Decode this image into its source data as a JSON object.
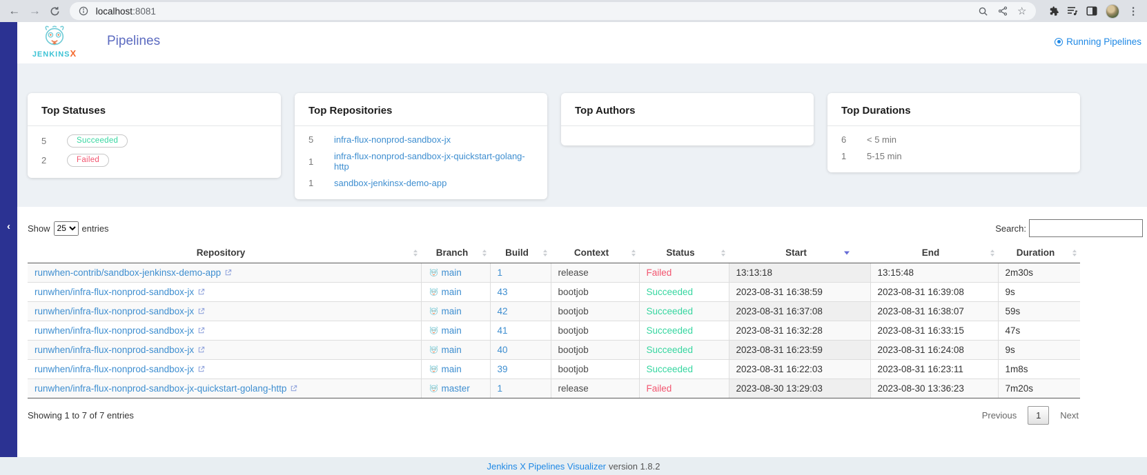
{
  "browser": {
    "url_host": "localhost",
    "url_port": ":8081",
    "icons": [
      "back",
      "forward",
      "reload",
      "page-info",
      "zoom",
      "share",
      "bookmark-star",
      "extensions",
      "reading-list",
      "side-panel",
      "profile-avatar",
      "browser-menu"
    ]
  },
  "header": {
    "logo_word": "JENKINS",
    "logo_x": "X",
    "title": "Pipelines",
    "running_label": "Running Pipelines"
  },
  "cards": [
    {
      "title": "Top Statuses",
      "type": "badges",
      "items": [
        {
          "count": "5",
          "label": "Succeeded",
          "color": "#36d6a0"
        },
        {
          "count": "2",
          "label": "Failed",
          "color": "#f2556f"
        }
      ]
    },
    {
      "title": "Top Repositories",
      "type": "links",
      "items": [
        {
          "count": "5",
          "label": "infra-flux-nonprod-sandbox-jx"
        },
        {
          "count": "1",
          "label": "infra-flux-nonprod-sandbox-jx-quickstart-golang-http"
        },
        {
          "count": "1",
          "label": "sandbox-jenkinsx-demo-app"
        }
      ]
    },
    {
      "title": "Top Authors",
      "type": "text",
      "items": []
    },
    {
      "title": "Top Durations",
      "type": "text",
      "items": [
        {
          "count": "6",
          "label": "< 5 min"
        },
        {
          "count": "1",
          "label": "5-15 min"
        }
      ]
    }
  ],
  "table": {
    "show_label": "Show",
    "page_size": "25",
    "entries_label": "entries",
    "search_label": "Search:",
    "search_value": "",
    "columns": [
      "Repository",
      "Branch",
      "Build",
      "Context",
      "Status",
      "Start",
      "End",
      "Duration"
    ],
    "sorted_column": "Start",
    "sort_direction": "desc",
    "rows": [
      {
        "repository": "runwhen-contrib/sandbox-jenkinsx-demo-app",
        "branch": "main",
        "build": "1",
        "context": "release",
        "status": "Failed",
        "start": "13:13:18",
        "end": "13:15:48",
        "duration": "2m30s"
      },
      {
        "repository": "runwhen/infra-flux-nonprod-sandbox-jx",
        "branch": "main",
        "build": "43",
        "context": "bootjob",
        "status": "Succeeded",
        "start": "2023-08-31 16:38:59",
        "end": "2023-08-31 16:39:08",
        "duration": "9s"
      },
      {
        "repository": "runwhen/infra-flux-nonprod-sandbox-jx",
        "branch": "main",
        "build": "42",
        "context": "bootjob",
        "status": "Succeeded",
        "start": "2023-08-31 16:37:08",
        "end": "2023-08-31 16:38:07",
        "duration": "59s"
      },
      {
        "repository": "runwhen/infra-flux-nonprod-sandbox-jx",
        "branch": "main",
        "build": "41",
        "context": "bootjob",
        "status": "Succeeded",
        "start": "2023-08-31 16:32:28",
        "end": "2023-08-31 16:33:15",
        "duration": "47s"
      },
      {
        "repository": "runwhen/infra-flux-nonprod-sandbox-jx",
        "branch": "main",
        "build": "40",
        "context": "bootjob",
        "status": "Succeeded",
        "start": "2023-08-31 16:23:59",
        "end": "2023-08-31 16:24:08",
        "duration": "9s"
      },
      {
        "repository": "runwhen/infra-flux-nonprod-sandbox-jx",
        "branch": "main",
        "build": "39",
        "context": "bootjob",
        "status": "Succeeded",
        "start": "2023-08-31 16:22:03",
        "end": "2023-08-31 16:23:11",
        "duration": "1m8s"
      },
      {
        "repository": "runwhen/infra-flux-nonprod-sandbox-jx-quickstart-golang-http",
        "branch": "master",
        "build": "1",
        "context": "release",
        "status": "Failed",
        "start": "2023-08-30 13:29:03",
        "end": "2023-08-30 13:36:23",
        "duration": "7m20s"
      }
    ],
    "summary": "Showing 1 to 7 of 7 entries",
    "pagination": {
      "previous": "Previous",
      "current": "1",
      "next": "Next"
    }
  },
  "footer": {
    "link": "Jenkins X Pipelines Visualizer",
    "version": " version 1.8.2"
  },
  "colors": {
    "accent": "#2b3292",
    "title": "#5c6bc0",
    "link": "#3e8ed0",
    "link2": "#1e88e5",
    "succeeded": "#36d6a0",
    "failed": "#f2556f"
  }
}
